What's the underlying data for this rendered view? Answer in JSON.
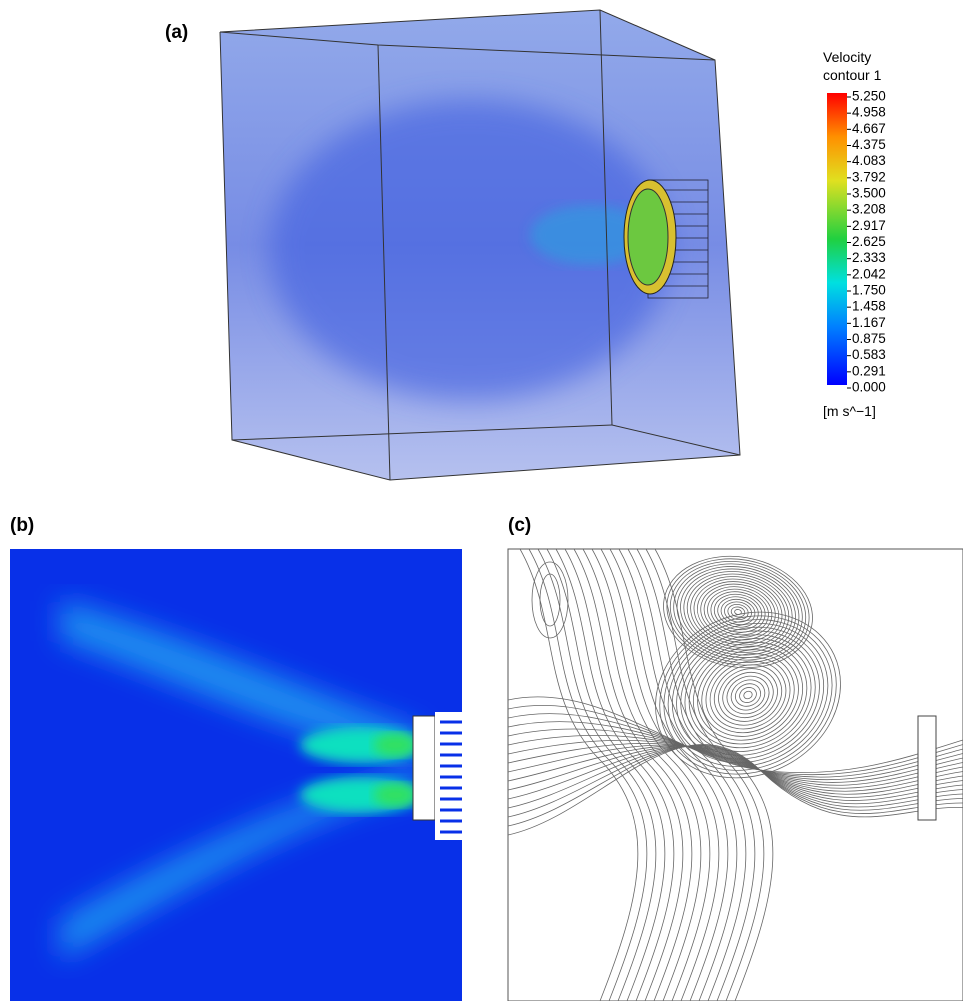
{
  "panels": {
    "a": {
      "label": "(a)"
    },
    "b": {
      "label": "(b)"
    },
    "c": {
      "label": "(c)"
    }
  },
  "legend": {
    "title_line1": "Velocity",
    "title_line2": "contour 1",
    "ticks": [
      "5.250",
      "4.958",
      "4.667",
      "4.375",
      "4.083",
      "3.792",
      "3.500",
      "3.208",
      "2.917",
      "2.625",
      "2.333",
      "2.042",
      "1.750",
      "1.458",
      "1.167",
      "0.875",
      "0.583",
      "0.291",
      "0.000"
    ],
    "unit": "[m s^−1]"
  }
}
